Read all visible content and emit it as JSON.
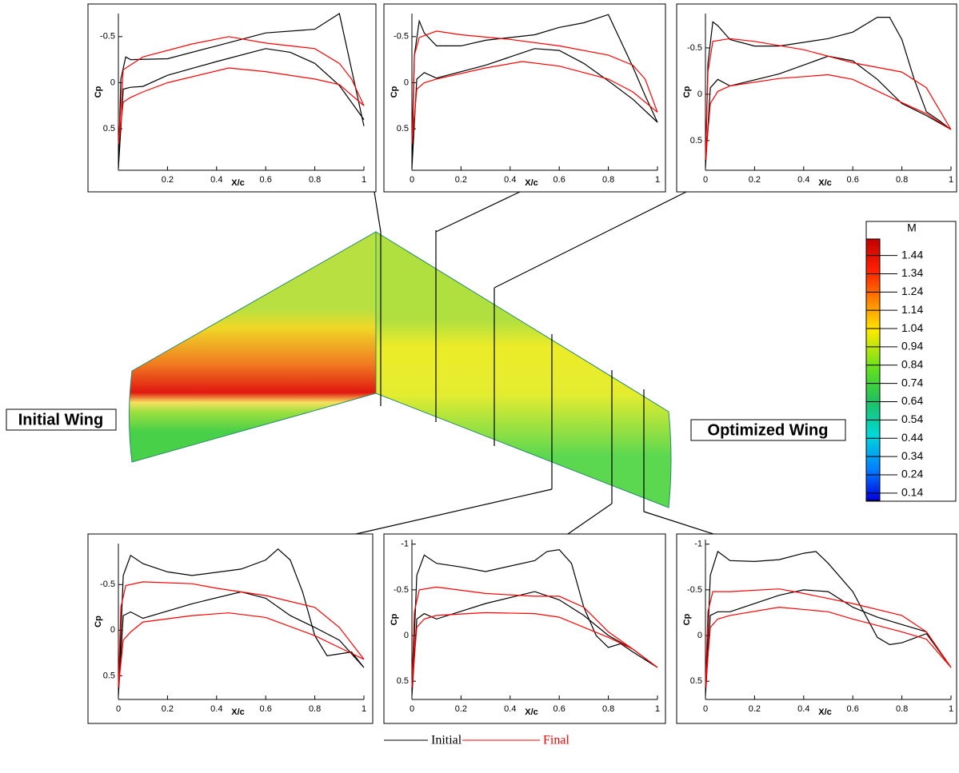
{
  "chart_data": [
    {
      "type": "line",
      "xlabel": "X/c",
      "ylabel": "Cp",
      "xlim": [
        0,
        1
      ],
      "ylim": [
        0.95,
        -0.75
      ],
      "xticks": [
        0.2,
        0.4,
        0.6,
        0.8,
        1
      ],
      "yticks": [
        -0.5,
        0,
        0.5
      ],
      "series": [
        {
          "color": "#000000",
          "x": [
            1,
            0.9,
            0.8,
            0.6,
            0.4,
            0.2,
            0.05,
            0.03,
            0.01,
            0,
            0.02,
            0.05,
            0.1,
            0.2,
            0.4,
            0.6,
            0.7,
            0.8,
            0.9,
            1
          ],
          "values": [
            0.47,
            -0.75,
            -0.58,
            -0.54,
            -0.4,
            -0.26,
            -0.25,
            -0.28,
            -0.04,
            0.93,
            0.07,
            0.05,
            0.04,
            -0.08,
            -0.23,
            -0.37,
            -0.33,
            -0.21,
            0.03,
            0.4
          ]
        },
        {
          "color": "#ff0000",
          "x": [
            1,
            0.95,
            0.9,
            0.8,
            0.6,
            0.45,
            0.3,
            0.1,
            0.02,
            0,
            0.02,
            0.05,
            0.1,
            0.2,
            0.45,
            0.6,
            0.8,
            0.9,
            1
          ],
          "values": [
            0.25,
            -0.04,
            -0.21,
            -0.37,
            -0.43,
            -0.5,
            -0.42,
            -0.28,
            -0.14,
            0.67,
            0.21,
            0.16,
            0.1,
            0,
            -0.16,
            -0.12,
            -0.04,
            0.02,
            0.25
          ]
        }
      ]
    },
    {
      "type": "line",
      "xlabel": "X/c",
      "ylabel": "Cp",
      "xlim": [
        0,
        1
      ],
      "ylim": [
        0.95,
        -0.75
      ],
      "xticks": [
        0,
        0.2,
        0.4,
        0.6,
        0.8,
        1
      ],
      "yticks": [
        -0.5,
        0,
        0.5
      ],
      "series": [
        {
          "color": "#000000",
          "x": [
            1,
            0.95,
            0.9,
            0.8,
            0.7,
            0.6,
            0.5,
            0.3,
            0.2,
            0.1,
            0.05,
            0.03,
            0.01,
            0,
            0.02,
            0.05,
            0.1,
            0.3,
            0.5,
            0.6,
            0.7,
            0.8,
            0.9,
            1
          ],
          "values": [
            0.43,
            0.14,
            -0.17,
            -0.74,
            -0.65,
            -0.6,
            -0.52,
            -0.46,
            -0.4,
            -0.4,
            -0.54,
            -0.67,
            -0.3,
            0.93,
            -0.04,
            -0.11,
            -0.05,
            -0.19,
            -0.37,
            -0.35,
            -0.21,
            -0.02,
            0.18,
            0.43
          ]
        },
        {
          "color": "#ff0000",
          "x": [
            1,
            0.95,
            0.9,
            0.8,
            0.6,
            0.4,
            0.2,
            0.1,
            0.03,
            0.01,
            0,
            0.02,
            0.05,
            0.1,
            0.3,
            0.45,
            0.6,
            0.8,
            0.9,
            1
          ],
          "values": [
            0.32,
            -0.04,
            -0.19,
            -0.3,
            -0.4,
            -0.47,
            -0.52,
            -0.56,
            -0.49,
            -0.3,
            0.67,
            0.07,
            0,
            -0.04,
            -0.16,
            -0.23,
            -0.18,
            -0.04,
            0.1,
            0.32
          ]
        }
      ]
    },
    {
      "type": "line",
      "xlabel": "X/c",
      "ylabel": "Cp",
      "xlim": [
        0,
        1
      ],
      "ylim": [
        0.82,
        -0.87
      ],
      "xticks": [
        0,
        0.2,
        0.4,
        0.6,
        0.8,
        1
      ],
      "yticks": [
        -0.5,
        0,
        0.5
      ],
      "series": [
        {
          "color": "#000000",
          "x": [
            1,
            0.95,
            0.9,
            0.85,
            0.8,
            0.75,
            0.7,
            0.6,
            0.5,
            0.3,
            0.2,
            0.1,
            0.05,
            0.03,
            0.01,
            0,
            0.02,
            0.05,
            0.1,
            0.3,
            0.5,
            0.6,
            0.7,
            0.8,
            0.9,
            1
          ],
          "values": [
            0.38,
            0.28,
            0.19,
            -0.16,
            -0.59,
            -0.83,
            -0.83,
            -0.67,
            -0.6,
            -0.52,
            -0.52,
            -0.59,
            -0.74,
            -0.78,
            -0.33,
            0.79,
            -0.07,
            -0.16,
            -0.09,
            -0.22,
            -0.41,
            -0.36,
            -0.16,
            0.1,
            0.23,
            0.38
          ]
        },
        {
          "color": "#ff0000",
          "x": [
            1,
            0.9,
            0.8,
            0.6,
            0.4,
            0.2,
            0.1,
            0.03,
            0.01,
            0,
            0.02,
            0.05,
            0.1,
            0.3,
            0.5,
            0.6,
            0.8,
            0.9,
            1
          ],
          "values": [
            0.38,
            -0.07,
            -0.24,
            -0.34,
            -0.48,
            -0.57,
            -0.6,
            -0.57,
            -0.24,
            0.71,
            0.1,
            -0.03,
            -0.09,
            -0.17,
            -0.21,
            -0.16,
            0.09,
            0.21,
            0.38
          ]
        }
      ]
    },
    {
      "type": "line",
      "xlabel": "X/c",
      "ylabel": "Cp",
      "xlim": [
        0,
        1
      ],
      "ylim": [
        0.76,
        -0.95
      ],
      "xticks": [
        0,
        0.2,
        0.4,
        0.6,
        0.8,
        1
      ],
      "yticks": [
        -0.5,
        0,
        0.5
      ],
      "series": [
        {
          "color": "#000000",
          "x": [
            1,
            0.95,
            0.9,
            0.85,
            0.8,
            0.75,
            0.7,
            0.65,
            0.6,
            0.5,
            0.3,
            0.2,
            0.1,
            0.05,
            0.02,
            0,
            0.02,
            0.05,
            0.1,
            0.3,
            0.5,
            0.6,
            0.7,
            0.8,
            0.9,
            1
          ],
          "values": [
            0.41,
            0.24,
            0.26,
            0.28,
            0.06,
            -0.42,
            -0.77,
            -0.89,
            -0.77,
            -0.67,
            -0.6,
            -0.64,
            -0.73,
            -0.82,
            -0.6,
            0.72,
            -0.16,
            -0.2,
            -0.13,
            -0.29,
            -0.42,
            -0.35,
            -0.16,
            -0.03,
            0.11,
            0.41
          ]
        },
        {
          "color": "#ff0000",
          "x": [
            1,
            0.9,
            0.8,
            0.6,
            0.4,
            0.3,
            0.1,
            0.03,
            0.01,
            0,
            0.02,
            0.05,
            0.1,
            0.3,
            0.45,
            0.6,
            0.8,
            0.9,
            1
          ],
          "values": [
            0.32,
            -0.03,
            -0.25,
            -0.38,
            -0.46,
            -0.51,
            -0.53,
            -0.49,
            -0.25,
            0.63,
            0.11,
            0.02,
            -0.09,
            -0.16,
            -0.19,
            -0.14,
            0.06,
            0.19,
            0.32
          ]
        }
      ]
    },
    {
      "type": "line",
      "xlabel": "X/c",
      "ylabel": "Cp",
      "xlim": [
        0,
        1
      ],
      "ylim": [
        0.7,
        -1.05
      ],
      "xticks": [
        0,
        0.2,
        0.4,
        0.6,
        0.8,
        1
      ],
      "yticks": [
        -1,
        -0.5,
        0,
        0.5
      ],
      "series": [
        {
          "color": "#000000",
          "x": [
            1,
            0.9,
            0.85,
            0.8,
            0.75,
            0.7,
            0.65,
            0.6,
            0.55,
            0.5,
            0.3,
            0.2,
            0.1,
            0.05,
            0.02,
            0,
            0.02,
            0.05,
            0.1,
            0.3,
            0.5,
            0.6,
            0.7,
            0.8,
            0.9,
            1
          ],
          "values": [
            0.35,
            0.18,
            0.09,
            0.13,
            0,
            -0.31,
            -0.79,
            -0.94,
            -0.92,
            -0.82,
            -0.7,
            -0.75,
            -0.79,
            -0.88,
            -0.66,
            0.66,
            -0.18,
            -0.24,
            -0.18,
            -0.35,
            -0.48,
            -0.39,
            -0.22,
            0,
            0.15,
            0.35
          ]
        },
        {
          "color": "#ff0000",
          "x": [
            1,
            0.9,
            0.8,
            0.7,
            0.6,
            0.5,
            0.3,
            0.1,
            0.03,
            0.01,
            0,
            0.02,
            0.05,
            0.1,
            0.3,
            0.5,
            0.6,
            0.8,
            0.9,
            1
          ],
          "values": [
            0.35,
            0.15,
            -0.04,
            -0.31,
            -0.43,
            -0.43,
            -0.46,
            -0.53,
            -0.5,
            -0.26,
            0.57,
            -0.09,
            -0.18,
            -0.22,
            -0.25,
            -0.24,
            -0.2,
            0.02,
            0.15,
            0.35
          ]
        }
      ]
    },
    {
      "type": "line",
      "xlabel": "X/c",
      "ylabel": "Cp",
      "xlim": [
        0,
        1
      ],
      "ylim": [
        0.7,
        -1.05
      ],
      "xticks": [
        0,
        0.2,
        0.4,
        0.6,
        0.8,
        1
      ],
      "yticks": [
        -1,
        -0.5,
        0,
        0.5
      ],
      "series": [
        {
          "color": "#000000",
          "x": [
            1,
            0.9,
            0.8,
            0.75,
            0.7,
            0.6,
            0.5,
            0.45,
            0.4,
            0.3,
            0.2,
            0.1,
            0.05,
            0.02,
            0,
            0.02,
            0.05,
            0.1,
            0.3,
            0.4,
            0.5,
            0.6,
            0.7,
            0.8,
            0.9,
            1
          ],
          "values": [
            0.35,
            -0.02,
            0.08,
            0.1,
            0.02,
            -0.48,
            -0.79,
            -0.92,
            -0.9,
            -0.83,
            -0.81,
            -0.82,
            -0.92,
            -0.66,
            0.66,
            -0.22,
            -0.26,
            -0.26,
            -0.44,
            -0.5,
            -0.48,
            -0.31,
            -0.2,
            -0.12,
            -0.04,
            0.35
          ]
        },
        {
          "color": "#ff0000",
          "x": [
            1,
            0.9,
            0.8,
            0.6,
            0.4,
            0.3,
            0.1,
            0.03,
            0.01,
            0,
            0.02,
            0.05,
            0.1,
            0.3,
            0.5,
            0.6,
            0.8,
            0.9,
            1
          ],
          "values": [
            0.35,
            -0.04,
            -0.22,
            -0.35,
            -0.46,
            -0.51,
            -0.48,
            -0.48,
            -0.26,
            0.57,
            -0.09,
            -0.18,
            -0.22,
            -0.31,
            -0.26,
            -0.18,
            -0.04,
            0.04,
            0.35
          ]
        }
      ]
    }
  ],
  "legend": [
    {
      "name": "Initial",
      "color": "#000000"
    },
    {
      "name": "Final",
      "color": "#ff0000"
    }
  ],
  "labels": {
    "initial_wing": "Initial Wing",
    "optimized_wing": "Optimized Wing"
  },
  "colorbar": {
    "title": "M",
    "lim": [
      0.1,
      1.53
    ],
    "ticks": [
      1.44,
      1.34,
      1.24,
      1.14,
      1.04,
      0.94,
      0.84,
      0.74,
      0.64,
      0.54,
      0.44,
      0.34,
      0.24,
      0.14
    ]
  }
}
